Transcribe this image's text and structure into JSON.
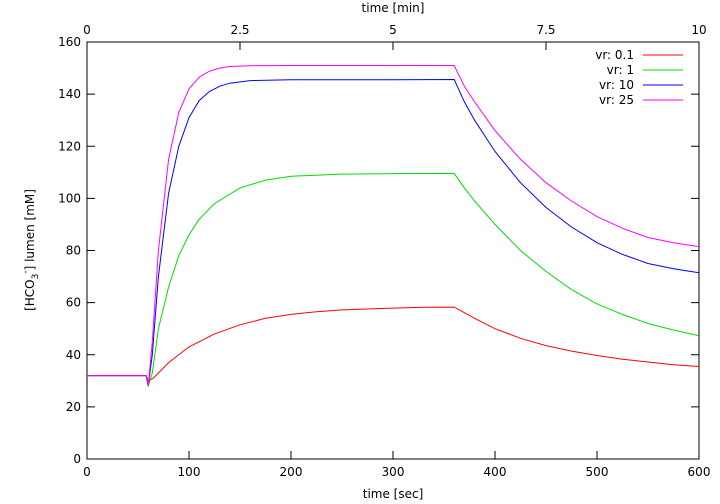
{
  "chart_data": {
    "type": "line",
    "xlabel": "time [sec]",
    "x2label": "time [min]",
    "ylabel_parts": {
      "a": "[HCO",
      "sub": "3",
      "sup": "-",
      "b": "] lumen [mM]"
    },
    "xlim": [
      0,
      600
    ],
    "x2lim": [
      0,
      10
    ],
    "ylim": [
      0,
      160
    ],
    "xticks": [
      "0",
      "100",
      "200",
      "300",
      "400",
      "500",
      "600"
    ],
    "x2ticks": [
      "0",
      "2.5",
      "5",
      "7.5",
      "10"
    ],
    "yticks": [
      "0",
      "20",
      "40",
      "60",
      "80",
      "100",
      "120",
      "140",
      "160"
    ],
    "grid": false,
    "legend_position": "top-right",
    "series": [
      {
        "name": "vr: 0.1",
        "color": "#ff0000",
        "points": [
          [
            0,
            32
          ],
          [
            58,
            32
          ],
          [
            60,
            30
          ],
          [
            65,
            31
          ],
          [
            80,
            37
          ],
          [
            100,
            43
          ],
          [
            125,
            48
          ],
          [
            150,
            51.5
          ],
          [
            175,
            54
          ],
          [
            200,
            55.5
          ],
          [
            225,
            56.5
          ],
          [
            250,
            57.2
          ],
          [
            300,
            57.9
          ],
          [
            330,
            58.2
          ],
          [
            360,
            58.3
          ],
          [
            380,
            54
          ],
          [
            400,
            50
          ],
          [
            425,
            46.3
          ],
          [
            450,
            43.5
          ],
          [
            475,
            41.4
          ],
          [
            500,
            39.7
          ],
          [
            525,
            38.3
          ],
          [
            550,
            37.2
          ],
          [
            575,
            36.2
          ],
          [
            600,
            35.5
          ]
        ]
      },
      {
        "name": "vr:   1",
        "color": "#00dd00",
        "points": [
          [
            0,
            32
          ],
          [
            58,
            32
          ],
          [
            60,
            28
          ],
          [
            64,
            33
          ],
          [
            70,
            50
          ],
          [
            80,
            66
          ],
          [
            90,
            78
          ],
          [
            100,
            86
          ],
          [
            110,
            92
          ],
          [
            125,
            98
          ],
          [
            150,
            104
          ],
          [
            175,
            107
          ],
          [
            200,
            108.5
          ],
          [
            250,
            109.3
          ],
          [
            300,
            109.5
          ],
          [
            360,
            109.6
          ],
          [
            370,
            104
          ],
          [
            380,
            99
          ],
          [
            400,
            90
          ],
          [
            425,
            80
          ],
          [
            450,
            72
          ],
          [
            475,
            65
          ],
          [
            500,
            59.5
          ],
          [
            525,
            55.5
          ],
          [
            550,
            52
          ],
          [
            575,
            49.5
          ],
          [
            600,
            47.3
          ]
        ]
      },
      {
        "name": "vr: 10",
        "color": "#0000ff",
        "points": [
          [
            0,
            32
          ],
          [
            58,
            32
          ],
          [
            60,
            28
          ],
          [
            64,
            40
          ],
          [
            70,
            70
          ],
          [
            80,
            102
          ],
          [
            90,
            120
          ],
          [
            100,
            131
          ],
          [
            110,
            137.5
          ],
          [
            120,
            141
          ],
          [
            130,
            143
          ],
          [
            140,
            144.2
          ],
          [
            160,
            145.2
          ],
          [
            200,
            145.5
          ],
          [
            300,
            145.5
          ],
          [
            360,
            145.6
          ],
          [
            370,
            137
          ],
          [
            380,
            130
          ],
          [
            400,
            118
          ],
          [
            425,
            106
          ],
          [
            450,
            96.5
          ],
          [
            475,
            89
          ],
          [
            500,
            83
          ],
          [
            525,
            78.5
          ],
          [
            550,
            75
          ],
          [
            575,
            73
          ],
          [
            600,
            71.5
          ]
        ]
      },
      {
        "name": "vr: 25",
        "color": "#ff00ff",
        "points": [
          [
            0,
            32
          ],
          [
            58,
            32
          ],
          [
            60,
            28
          ],
          [
            64,
            45
          ],
          [
            70,
            80
          ],
          [
            80,
            115
          ],
          [
            90,
            133
          ],
          [
            100,
            142
          ],
          [
            110,
            146.5
          ],
          [
            120,
            148.8
          ],
          [
            130,
            150
          ],
          [
            140,
            150.6
          ],
          [
            160,
            150.9
          ],
          [
            200,
            151
          ],
          [
            300,
            151
          ],
          [
            360,
            151
          ],
          [
            370,
            143
          ],
          [
            380,
            137
          ],
          [
            400,
            126
          ],
          [
            425,
            115
          ],
          [
            450,
            106
          ],
          [
            475,
            99
          ],
          [
            500,
            93
          ],
          [
            525,
            88.5
          ],
          [
            550,
            85
          ],
          [
            575,
            83
          ],
          [
            600,
            81.5
          ]
        ]
      }
    ]
  }
}
